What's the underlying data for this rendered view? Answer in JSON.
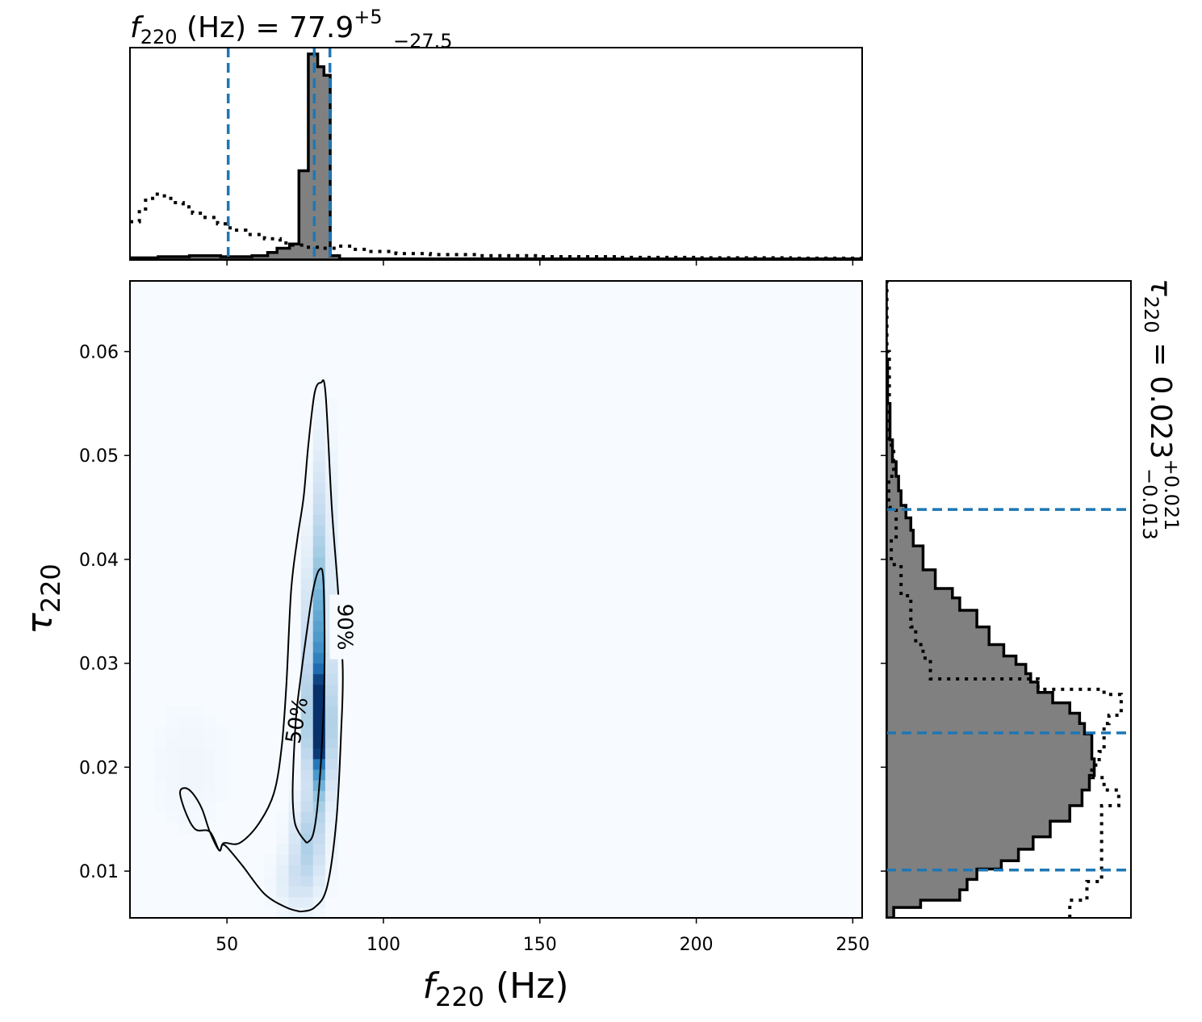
{
  "chart_data": [
    {
      "type": "histogram",
      "panel": "top-marginal",
      "title": {
        "symbol": "f",
        "sub": "220",
        "unit": " (Hz) = ",
        "value": "77.9",
        "sup": "+5",
        "lower": "−27.5"
      },
      "xlim": [
        19,
        253
      ],
      "ylim": [
        0,
        1.0
      ],
      "xticks": [
        50,
        100,
        150,
        200,
        250
      ],
      "posterior_steps": [
        [
          19,
          0.01
        ],
        [
          28,
          0.015
        ],
        [
          38,
          0.02
        ],
        [
          48,
          0.015
        ],
        [
          58,
          0.02
        ],
        [
          63,
          0.035
        ],
        [
          66,
          0.055
        ],
        [
          70,
          0.075
        ],
        [
          73,
          0.42
        ],
        [
          76,
          0.97
        ],
        [
          79,
          0.91
        ],
        [
          81,
          0.87
        ],
        [
          83,
          0.02
        ],
        [
          86,
          0.005
        ],
        [
          253,
          0.005
        ]
      ],
      "prior_steps": [
        [
          19,
          0.18
        ],
        [
          22,
          0.24
        ],
        [
          24,
          0.29
        ],
        [
          27,
          0.31
        ],
        [
          30,
          0.29
        ],
        [
          33,
          0.27
        ],
        [
          36,
          0.25
        ],
        [
          39,
          0.22
        ],
        [
          43,
          0.2
        ],
        [
          47,
          0.17
        ],
        [
          51,
          0.14
        ],
        [
          56,
          0.12
        ],
        [
          62,
          0.1
        ],
        [
          67,
          0.08
        ],
        [
          71,
          0.07
        ],
        [
          75,
          0.06
        ],
        [
          80,
          0.055
        ],
        [
          85,
          0.065
        ],
        [
          90,
          0.05
        ],
        [
          96,
          0.04
        ],
        [
          104,
          0.03
        ],
        [
          115,
          0.025
        ],
        [
          130,
          0.02
        ],
        [
          150,
          0.015
        ],
        [
          175,
          0.012
        ],
        [
          200,
          0.01
        ],
        [
          230,
          0.008
        ],
        [
          253,
          0.008
        ]
      ],
      "quantile_lines": [
        50.4,
        77.9,
        82.9
      ]
    },
    {
      "type": "heatmap",
      "panel": "joint",
      "xlabel": {
        "symbol": "f",
        "sub": "220",
        "unit": " (Hz)"
      },
      "ylabel": {
        "symbol": "τ",
        "sub": "220"
      },
      "xlim": [
        19,
        253
      ],
      "ylim": [
        0.0055,
        0.0668
      ],
      "xticks": [
        50,
        100,
        150,
        200,
        250
      ],
      "yticks": [
        0.01,
        0.02,
        0.03,
        0.04,
        0.05,
        0.06
      ],
      "colormap": "Blues",
      "density_blobs": [
        {
          "x": 79.5,
          "y": 0.0235,
          "sx": 2.6,
          "sy": 0.0045,
          "w": 1.0
        },
        {
          "x": 79.0,
          "y": 0.033,
          "sx": 2.6,
          "sy": 0.006,
          "w": 0.55
        },
        {
          "x": 80.5,
          "y": 0.044,
          "sx": 2.0,
          "sy": 0.006,
          "w": 0.25
        },
        {
          "x": 76.0,
          "y": 0.013,
          "sx": 3.6,
          "sy": 0.003,
          "w": 0.35
        },
        {
          "x": 72.0,
          "y": 0.009,
          "sx": 4.5,
          "sy": 0.002,
          "w": 0.18
        },
        {
          "x": 38.0,
          "y": 0.02,
          "sx": 8.0,
          "sy": 0.004,
          "w": 0.05
        }
      ],
      "contours": [
        {
          "level": "90%",
          "label_at": [
            87.5,
            0.0335
          ],
          "points": [
            [
              73.5,
              0.0061
            ],
            [
              69,
              0.0065
            ],
            [
              62,
              0.0078
            ],
            [
              55,
              0.0105
            ],
            [
              50,
              0.0123
            ],
            [
              48.5,
              0.0125
            ],
            [
              47.5,
              0.012
            ],
            [
              44.5,
              0.0138
            ],
            [
              40,
              0.014
            ],
            [
              37,
              0.0155
            ],
            [
              35,
              0.0175
            ],
            [
              36.5,
              0.018
            ],
            [
              39,
              0.0175
            ],
            [
              42,
              0.016
            ],
            [
              44.5,
              0.0138
            ],
            [
              47.5,
              0.012
            ],
            [
              49,
              0.0127
            ],
            [
              54,
              0.0127
            ],
            [
              60,
              0.0145
            ],
            [
              65,
              0.0175
            ],
            [
              67.5,
              0.022
            ],
            [
              69,
              0.028
            ],
            [
              70.5,
              0.037
            ],
            [
              72.5,
              0.042
            ],
            [
              74.5,
              0.046
            ],
            [
              76,
              0.051
            ],
            [
              78,
              0.056
            ],
            [
              80,
              0.057
            ],
            [
              81.5,
              0.056
            ],
            [
              83.5,
              0.045
            ],
            [
              85.5,
              0.037
            ],
            [
              87,
              0.0295
            ],
            [
              86.5,
              0.0235
            ],
            [
              85,
              0.015
            ],
            [
              82,
              0.0085
            ],
            [
              78,
              0.0065
            ],
            [
              73.5,
              0.0061
            ]
          ]
        },
        {
          "level": "50%",
          "label_at": [
            72.5,
            0.0245
          ],
          "points": [
            [
              75.5,
              0.0127
            ],
            [
              73,
              0.0137
            ],
            [
              71.5,
              0.015
            ],
            [
              71,
              0.018
            ],
            [
              72,
              0.0245
            ],
            [
              73.5,
              0.0285
            ],
            [
              75.5,
              0.033
            ],
            [
              77.5,
              0.037
            ],
            [
              79.5,
              0.039
            ],
            [
              80.8,
              0.038
            ],
            [
              81.2,
              0.0305
            ],
            [
              80.5,
              0.023
            ],
            [
              79,
              0.0165
            ],
            [
              77.5,
              0.0135
            ],
            [
              75.5,
              0.0127
            ]
          ]
        }
      ]
    },
    {
      "type": "histogram",
      "panel": "right-marginal",
      "orientation": "horizontal",
      "title": {
        "symbol": "τ",
        "sub": "220",
        "eq": " = 0.023",
        "sup": "+0.021",
        "lower": "−0.013"
      },
      "ylim": [
        0.0055,
        0.0668
      ],
      "xlim": [
        0,
        1.0
      ],
      "posterior_steps": [
        [
          0.0055,
          0.03
        ],
        [
          0.0065,
          0.14
        ],
        [
          0.0072,
          0.3
        ],
        [
          0.0082,
          0.33
        ],
        [
          0.0092,
          0.37
        ],
        [
          0.0102,
          0.47
        ],
        [
          0.011,
          0.54
        ],
        [
          0.0121,
          0.6
        ],
        [
          0.0133,
          0.67
        ],
        [
          0.0148,
          0.75
        ],
        [
          0.0163,
          0.8
        ],
        [
          0.0178,
          0.83
        ],
        [
          0.0192,
          0.85
        ],
        [
          0.0208,
          0.84
        ],
        [
          0.022,
          0.84
        ],
        [
          0.0232,
          0.81
        ],
        [
          0.0242,
          0.79
        ],
        [
          0.0252,
          0.75
        ],
        [
          0.0262,
          0.68
        ],
        [
          0.0272,
          0.62
        ],
        [
          0.0282,
          0.59
        ],
        [
          0.029,
          0.57
        ],
        [
          0.0299,
          0.53
        ],
        [
          0.0307,
          0.48
        ],
        [
          0.0318,
          0.42
        ],
        [
          0.0335,
          0.37
        ],
        [
          0.0351,
          0.3
        ],
        [
          0.0363,
          0.27
        ],
        [
          0.0372,
          0.2
        ],
        [
          0.039,
          0.15
        ],
        [
          0.0402,
          0.15
        ],
        [
          0.0413,
          0.11
        ],
        [
          0.0428,
          0.1
        ],
        [
          0.044,
          0.08
        ],
        [
          0.0452,
          0.06
        ],
        [
          0.0466,
          0.05
        ],
        [
          0.048,
          0.04
        ],
        [
          0.0494,
          0.025
        ],
        [
          0.0515,
          0.015
        ],
        [
          0.055,
          0.005
        ],
        [
          0.059,
          0.0
        ]
      ],
      "prior_steps": [
        [
          0.0055,
          0.75
        ],
        [
          0.0072,
          0.82
        ],
        [
          0.009,
          0.88
        ],
        [
          0.0148,
          0.88
        ],
        [
          0.0163,
          0.95
        ],
        [
          0.0178,
          0.89
        ],
        [
          0.019,
          0.84
        ],
        [
          0.0202,
          0.87
        ],
        [
          0.0215,
          0.89
        ],
        [
          0.0242,
          0.91
        ],
        [
          0.025,
          0.96
        ],
        [
          0.027,
          0.89
        ],
        [
          0.0275,
          0.62
        ],
        [
          0.0285,
          0.18
        ],
        [
          0.0305,
          0.15
        ],
        [
          0.0318,
          0.12
        ],
        [
          0.0335,
          0.1
        ],
        [
          0.0365,
          0.06
        ],
        [
          0.0395,
          0.02
        ],
        [
          0.042,
          0.04
        ],
        [
          0.045,
          0.01
        ],
        [
          0.048,
          0.03
        ],
        [
          0.051,
          0.01
        ],
        [
          0.055,
          0.012
        ],
        [
          0.06,
          0.002
        ],
        [
          0.0668,
          0.0
        ]
      ],
      "quantile_lines": [
        0.0101,
        0.0233,
        0.0448
      ]
    }
  ],
  "contour_labels": {
    "c90": "90%",
    "c50": "50%"
  },
  "colors": {
    "posterior_fill": "#808080",
    "edge": "#000000",
    "quantile": "#1f77b4",
    "background_low": "#f7fbff"
  }
}
